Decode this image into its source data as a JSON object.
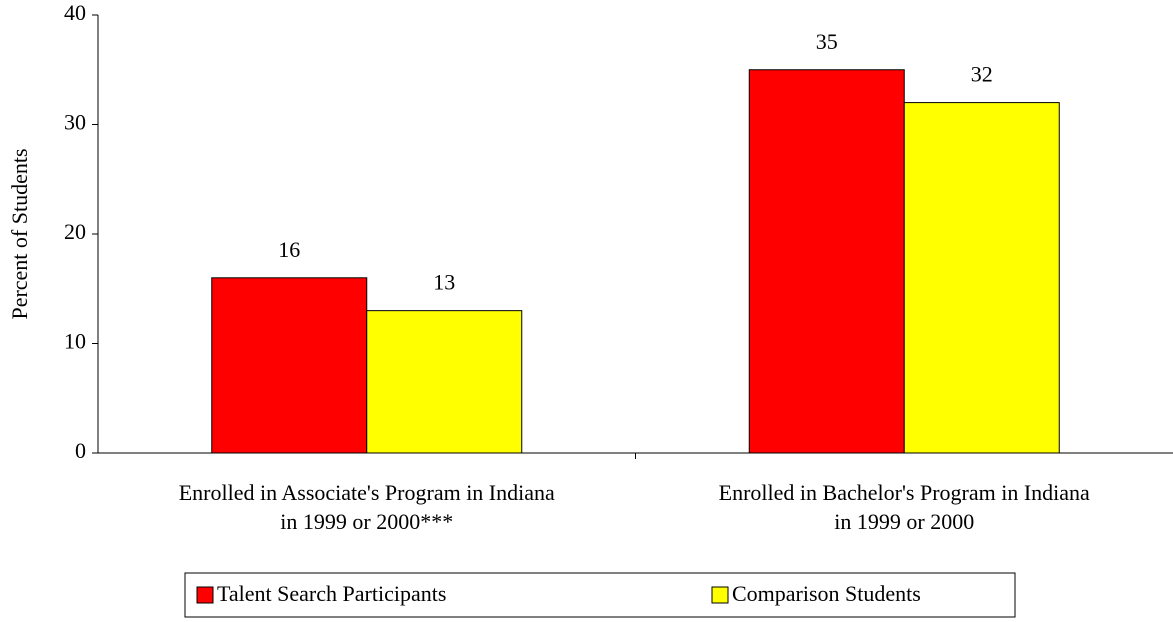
{
  "chart_data": {
    "type": "bar",
    "ylabel": "Percent of Students",
    "categories": [
      [
        "Enrolled in Associate's Program in Indiana",
        "in 1999 or 2000***"
      ],
      [
        "Enrolled in Bachelor's Program in Indiana",
        "in 1999 or 2000"
      ]
    ],
    "series": [
      {
        "name": "Talent Search Participants",
        "color": "#ff0000",
        "values": [
          16,
          35
        ]
      },
      {
        "name": "Comparison Students",
        "color": "#ffff00",
        "values": [
          13,
          32
        ]
      }
    ],
    "ylim": [
      0,
      40
    ],
    "yticks": [
      0,
      10,
      20,
      30,
      40
    ],
    "grid": false,
    "legend": "bottom"
  }
}
